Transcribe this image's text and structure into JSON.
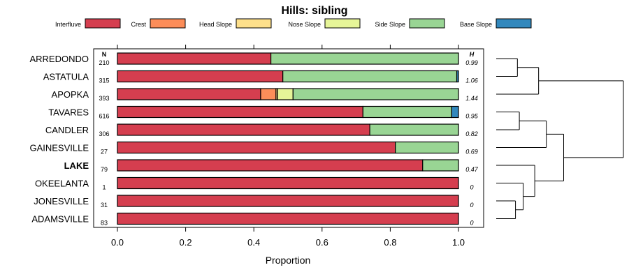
{
  "chart_data": {
    "type": "bar",
    "orientation": "horizontal",
    "stacked": true,
    "title": "Hills: sibling",
    "xlabel": "Proportion",
    "ylabel": "",
    "xlim": [
      0,
      1
    ],
    "xticks": [
      0.0,
      0.2,
      0.4,
      0.6,
      0.8,
      1.0
    ],
    "xtick_labels": [
      "0.0",
      "0.2",
      "0.4",
      "0.6",
      "0.8",
      "1.0"
    ],
    "n_header": "N",
    "h_header": "H",
    "legend_position": "top",
    "legend": [
      {
        "name": "Interfluve",
        "color": "#D53E4F"
      },
      {
        "name": "Crest",
        "color": "#FC8D59"
      },
      {
        "name": "Head Slope",
        "color": "#FEE08B"
      },
      {
        "name": "Nose Slope",
        "color": "#E6F598"
      },
      {
        "name": "Side Slope",
        "color": "#99D594"
      },
      {
        "name": "Base Slope",
        "color": "#3288BD"
      }
    ],
    "categories": [
      "ARREDONDO",
      "ASTATULA",
      "APOPKA",
      "TAVARES",
      "CANDLER",
      "GAINESVILLE",
      "LAKE",
      "OKEELANTA",
      "JONESVILLE",
      "ADAMSVILLE"
    ],
    "highlight": "LAKE",
    "n_values": [
      "210",
      "315",
      "393",
      "616",
      "306",
      "27",
      "79",
      "1",
      "31",
      "83"
    ],
    "h_values": [
      "0.99",
      "1.06",
      "1.44",
      "0.95",
      "0.82",
      "0.69",
      "0.47",
      "0",
      "0",
      "0"
    ],
    "series": [
      {
        "name": "Interfluve",
        "values": [
          0.45,
          0.485,
          0.42,
          0.72,
          0.74,
          0.815,
          0.895,
          1.0,
          1.0,
          1.0
        ]
      },
      {
        "name": "Crest",
        "values": [
          0,
          0,
          0.045,
          0,
          0,
          0,
          0,
          0,
          0,
          0
        ]
      },
      {
        "name": "Head Slope",
        "values": [
          0,
          0,
          0.005,
          0,
          0,
          0,
          0,
          0,
          0,
          0
        ]
      },
      {
        "name": "Nose Slope",
        "values": [
          0,
          0,
          0.045,
          0,
          0,
          0,
          0,
          0,
          0,
          0
        ]
      },
      {
        "name": "Side Slope",
        "values": [
          0.55,
          0.51,
          0.485,
          0.26,
          0.26,
          0.185,
          0.105,
          0,
          0,
          0
        ]
      },
      {
        "name": "Base Slope",
        "values": [
          0,
          0.005,
          0,
          0.02,
          0,
          0,
          0,
          0,
          0,
          0
        ]
      }
    ],
    "dendrogram": {
      "leaf_order": [
        "ARREDONDO",
        "ASTATULA",
        "APOPKA",
        "TAVARES",
        "CANDLER",
        "GAINESVILLE",
        "LAKE",
        "OKEELANTA",
        "JONESVILLE",
        "ADAMSVILLE"
      ],
      "merges": [
        {
          "a": "ARREDONDO",
          "b": "ASTATULA",
          "height": 0.55
        },
        {
          "a": 0,
          "b": "APOPKA",
          "height": 1.1
        },
        {
          "a": "TAVARES",
          "b": "CANDLER",
          "height": 0.6
        },
        {
          "a": 2,
          "b": "GAINESVILLE",
          "height": 1.3
        },
        {
          "a": "JONESVILLE",
          "b": "ADAMSVILLE",
          "height": 0.5
        },
        {
          "a": "OKEELANTA",
          "b": 4,
          "height": 0.7
        },
        {
          "a": "LAKE",
          "b": 5,
          "height": 1.0
        },
        {
          "a": 3,
          "b": 6,
          "height": 1.75
        },
        {
          "a": 1,
          "b": 7,
          "height": 3.3
        }
      ],
      "max_height": 3.3
    }
  }
}
